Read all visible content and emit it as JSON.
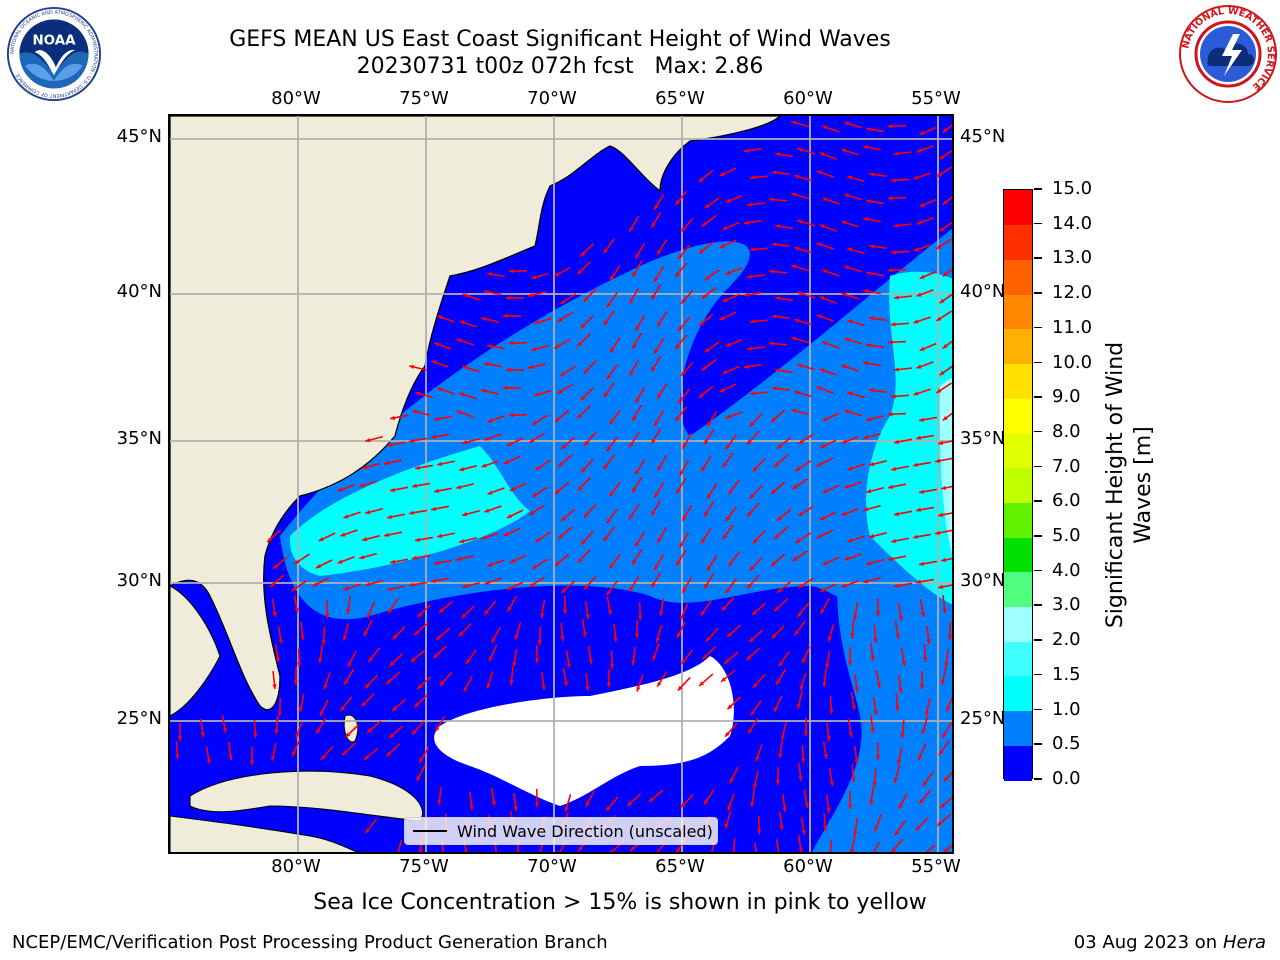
{
  "title_line1": "GEFS MEAN US East Coast Significant Height of Wind Waves",
  "title_line2": "20230731 t00z 072h fcst   Max: 2.86",
  "logos": {
    "noaa": {
      "text": "NOAA",
      "ring_text": "NATIONAL OCEANIC AND ATMOSPHERIC ADMINISTRATION · U.S. DEPARTMENT OF COMMERCE"
    },
    "nws": {
      "ring_text": "NATIONAL WEATHER SERVICE"
    }
  },
  "map": {
    "lon_labels": [
      "80°W",
      "75°W",
      "70°W",
      "65°W",
      "60°W",
      "55°W"
    ],
    "lat_labels": [
      "45°N",
      "40°N",
      "35°N",
      "30°N",
      "25°N"
    ],
    "colors": {
      "land": "#efedda",
      "ocean_low": "#0000ff",
      "ocean_mid": "#0080ff",
      "ocean_high": "#00ffff",
      "ocean_top": "#7fffff",
      "arrow": "#ff0000",
      "grid": "#b0b0b0",
      "coast": "#000000"
    }
  },
  "legend": {
    "label": "Wind Wave Direction (unscaled)"
  },
  "colorbar": {
    "label_line1": "Significant Height of Wind",
    "label_line2": "Waves [m]",
    "tick_labels": [
      "0.0",
      "0.5",
      "1.0",
      "1.5",
      "2.0",
      "3.0",
      "4.0",
      "5.0",
      "6.0",
      "7.0",
      "8.0",
      "9.0",
      "10.0",
      "11.0",
      "12.0",
      "13.0",
      "14.0",
      "15.0"
    ],
    "colors": [
      "#0000ff",
      "#0080ff",
      "#00ffff",
      "#40ffff",
      "#a0ffff",
      "#50ff80",
      "#00e000",
      "#60f000",
      "#c0ff00",
      "#e0ff00",
      "#ffff00",
      "#ffe000",
      "#ffb000",
      "#ff8800",
      "#ff6000",
      "#ff3000",
      "#ff0000"
    ]
  },
  "caption": "Sea Ice Concentration > 15% is shown in pink to yellow",
  "footer_left": "NCEP/EMC/Verification Post Processing Product Generation Branch",
  "footer_right_prefix": "03 Aug 2023 on",
  "footer_right_host": "Hera"
}
